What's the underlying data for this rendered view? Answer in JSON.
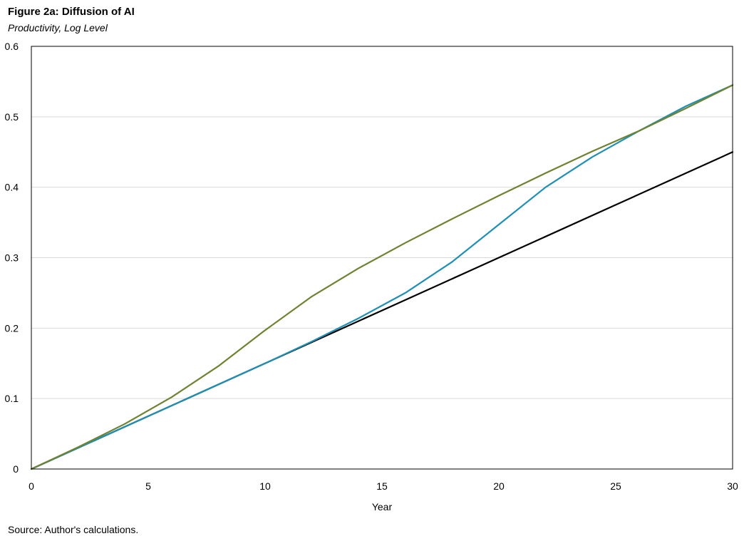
{
  "title": "Figure 2a: Diffusion of AI",
  "subtitle": "Productivity, Log Level",
  "source": "Source: Author's calculations.",
  "chart_data": {
    "type": "line",
    "xlabel": "Year",
    "ylabel": "",
    "xlim": [
      0,
      30
    ],
    "ylim": [
      0,
      0.6
    ],
    "xticks": [
      0,
      5,
      10,
      15,
      20,
      25,
      30
    ],
    "yticks": [
      0,
      0.1,
      0.2,
      0.3,
      0.4,
      0.5,
      0.6
    ],
    "ytick_labels": [
      "0",
      "0.1",
      "0.2",
      "0.3",
      "0.4",
      "0.5",
      "0.6"
    ],
    "grid": "horizontal",
    "legend": "none",
    "series": [
      {
        "color": "#000000",
        "x": [
          0,
          5,
          10,
          15,
          20,
          25,
          30
        ],
        "y": [
          0,
          0.075,
          0.15,
          0.225,
          0.3,
          0.375,
          0.45
        ]
      },
      {
        "color": "#1f8fb4",
        "x": [
          0,
          5,
          10,
          12,
          14,
          16,
          18,
          20,
          22,
          24,
          26,
          28,
          30
        ],
        "y": [
          0,
          0.075,
          0.15,
          0.181,
          0.214,
          0.25,
          0.294,
          0.347,
          0.4,
          0.443,
          0.48,
          0.515,
          0.545
        ]
      },
      {
        "color": "#6e8232",
        "x": [
          0,
          2,
          4,
          6,
          8,
          10,
          12,
          14,
          16,
          18,
          20,
          22,
          24,
          26,
          28,
          30
        ],
        "y": [
          0,
          0.031,
          0.064,
          0.102,
          0.146,
          0.197,
          0.245,
          0.285,
          0.321,
          0.355,
          0.388,
          0.42,
          0.451,
          0.48,
          0.512,
          0.545
        ]
      }
    ]
  }
}
